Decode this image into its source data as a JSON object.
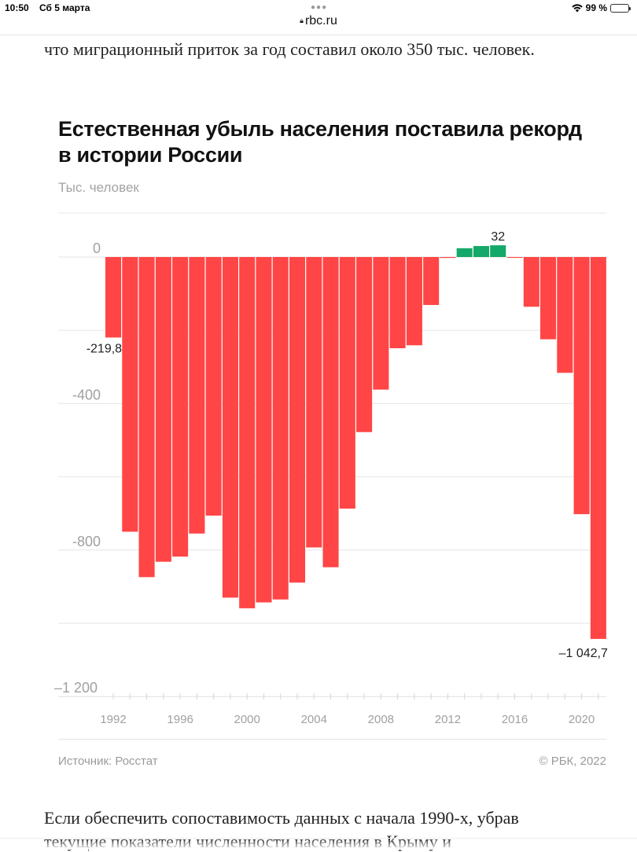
{
  "status_bar": {
    "time": "10:50",
    "date": "Сб 5 марта",
    "battery": "99 %",
    "battery_level": 0.99
  },
  "browser": {
    "url": "rbc.ru"
  },
  "article": {
    "text_before": "что миграционный приток за год составил около 350 тыс. человек.",
    "text_after_1": "Если обеспечить сопоставимость данных с начала 1990-х, убрав",
    "text_after_2": "текущие показатели численности населения в Крыму и"
  },
  "chart_data": {
    "type": "bar",
    "title": "Естественная убыль населения поставила рекорд в истории России",
    "ylabel": "Тыс. человек",
    "xlabel": "",
    "ylim": [
      -1200,
      120
    ],
    "yticks": [
      0,
      -200,
      -400,
      -600,
      -800,
      -1000,
      -1200
    ],
    "ytick_labels": [
      {
        "value": 0,
        "label": "0"
      },
      {
        "value": -400,
        "label": "-400"
      },
      {
        "value": -800,
        "label": "-800"
      },
      {
        "value": -1200,
        "label": "–1 200"
      }
    ],
    "xtick_labels": [
      "1992",
      "1996",
      "2000",
      "2004",
      "2008",
      "2012",
      "2016",
      "2020"
    ],
    "grid": true,
    "categories": [
      "1992",
      "1993",
      "1994",
      "1995",
      "1996",
      "1997",
      "1998",
      "1999",
      "2000",
      "2001",
      "2002",
      "2003",
      "2004",
      "2005",
      "2006",
      "2007",
      "2008",
      "2009",
      "2010",
      "2011",
      "2012",
      "2013",
      "2014",
      "2015",
      "2016",
      "2017",
      "2018",
      "2019",
      "2020",
      "2021"
    ],
    "values": [
      -219.8,
      -750,
      -874,
      -832,
      -818,
      -755,
      -706,
      -930,
      -959,
      -943,
      -935,
      -889,
      -793,
      -847,
      -687,
      -478,
      -362,
      -249,
      -241,
      -131,
      -2.5,
      24,
      30,
      32,
      -2.3,
      -135.8,
      -224.6,
      -316.2,
      -702.1,
      -1042.7
    ],
    "data_labels": [
      {
        "category": "1992",
        "label": "-219,8"
      },
      {
        "category": "2015",
        "label": "32"
      },
      {
        "category": "2021",
        "label": "–1 042,7"
      }
    ],
    "colors": {
      "negative": "#FF4545",
      "positive": "#14A86A"
    },
    "source": "Источник: Росстат",
    "copyright": "© РБК, 2022"
  }
}
